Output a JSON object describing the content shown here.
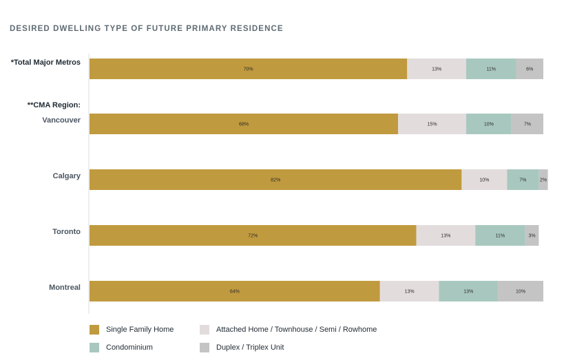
{
  "title": "DESIRED DWELLING TYPE OF FUTURE PRIMARY RESIDENCE",
  "group_heading": "**CMA Region:",
  "chart_data": {
    "type": "bar",
    "orientation": "horizontal",
    "stacked": true,
    "title": "DESIRED DWELLING TYPE OF FUTURE PRIMARY RESIDENCE",
    "xlim": [
      0,
      100
    ],
    "legend_position": "bottom",
    "categories": [
      "*Total Major Metros",
      "Vancouver",
      "Calgary",
      "Toronto",
      "Montreal"
    ],
    "series": [
      {
        "name": "Single Family Home",
        "color": "#c09a3e",
        "values": [
          70,
          68,
          82,
          72,
          64
        ]
      },
      {
        "name": "Attached Home / Townhouse / Semi / Rowhome",
        "color": "#e3dcdc",
        "values": [
          13,
          15,
          10,
          13,
          13
        ]
      },
      {
        "name": "Condominium",
        "color": "#a8c8bf",
        "values": [
          11,
          10,
          7,
          11,
          13
        ]
      },
      {
        "name": "Duplex / Triplex Unit",
        "color": "#c4c4c4",
        "values": [
          6,
          7,
          2,
          3,
          10
        ]
      }
    ]
  }
}
